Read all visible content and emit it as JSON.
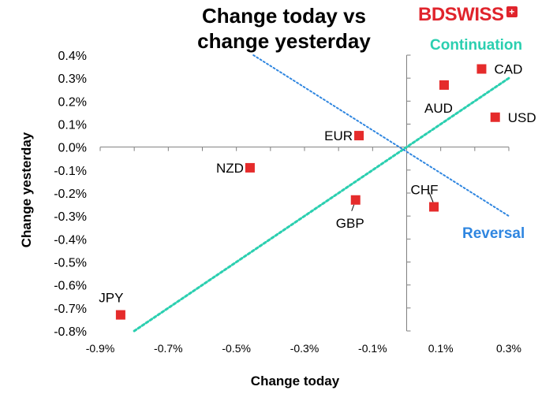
{
  "brand": {
    "logo_text": "BDSWISS",
    "badge": "+",
    "color": "#e0242c"
  },
  "chart_data": {
    "type": "scatter",
    "title_lines": [
      "Change today vs",
      "change yesterday"
    ],
    "xlabel": "Change today",
    "ylabel": "Change yesterday",
    "xlim": [
      -0.9,
      0.3
    ],
    "ylim": [
      -0.8,
      0.4
    ],
    "x_ticks": [
      {
        "value": -0.9,
        "label": "-0.9%"
      },
      {
        "value": -0.7,
        "label": "-0.7%"
      },
      {
        "value": -0.5,
        "label": "-0.5%"
      },
      {
        "value": -0.3,
        "label": "-0.3%"
      },
      {
        "value": -0.1,
        "label": "-0.1%"
      },
      {
        "value": 0.1,
        "label": "0.1%"
      },
      {
        "value": 0.3,
        "label": "0.3%"
      }
    ],
    "y_ticks": [
      {
        "value": 0.4,
        "label": "0.4%"
      },
      {
        "value": 0.3,
        "label": "0.3%"
      },
      {
        "value": 0.2,
        "label": "0.2%"
      },
      {
        "value": 0.1,
        "label": "0.1%"
      },
      {
        "value": 0.0,
        "label": "0.0%"
      },
      {
        "value": -0.1,
        "label": "-0.1%"
      },
      {
        "value": -0.2,
        "label": "-0.2%"
      },
      {
        "value": -0.3,
        "label": "-0.3%"
      },
      {
        "value": -0.4,
        "label": "-0.4%"
      },
      {
        "value": -0.5,
        "label": "-0.5%"
      },
      {
        "value": -0.6,
        "label": "-0.6%"
      },
      {
        "value": -0.7,
        "label": "-0.7%"
      },
      {
        "value": -0.8,
        "label": "-0.8%"
      }
    ],
    "points": [
      {
        "label": "CAD",
        "x": 0.22,
        "y": 0.34,
        "label_pos": "right"
      },
      {
        "label": "AUD",
        "x": 0.11,
        "y": 0.27,
        "label_pos": "below"
      },
      {
        "label": "USD",
        "x": 0.26,
        "y": 0.13,
        "label_pos": "right"
      },
      {
        "label": "EUR",
        "x": -0.14,
        "y": 0.05,
        "label_pos": "left"
      },
      {
        "label": "NZD",
        "x": -0.46,
        "y": -0.09,
        "label_pos": "left"
      },
      {
        "label": "GBP",
        "x": -0.15,
        "y": -0.23,
        "label_pos": "below"
      },
      {
        "label": "CHF",
        "x": 0.08,
        "y": -0.26,
        "label_pos": "above"
      },
      {
        "label": "JPY",
        "x": -0.84,
        "y": -0.73,
        "label_pos": "above"
      }
    ],
    "point_color": "#e52b2b",
    "reference_lines": [
      {
        "name": "Continuation",
        "from": [
          -0.8,
          -0.8
        ],
        "to": [
          0.3,
          0.3
        ],
        "color": "#2bcfb0"
      },
      {
        "name": "Reversal",
        "from": [
          -0.45,
          0.4
        ],
        "to": [
          0.3,
          -0.3
        ],
        "color": "#2f86e0"
      }
    ],
    "annotations": [
      {
        "text": "Continuation",
        "color": "#2bcfb0"
      },
      {
        "text": "Reversal",
        "color": "#2f86e0"
      }
    ],
    "grid": false,
    "legend": "none"
  }
}
